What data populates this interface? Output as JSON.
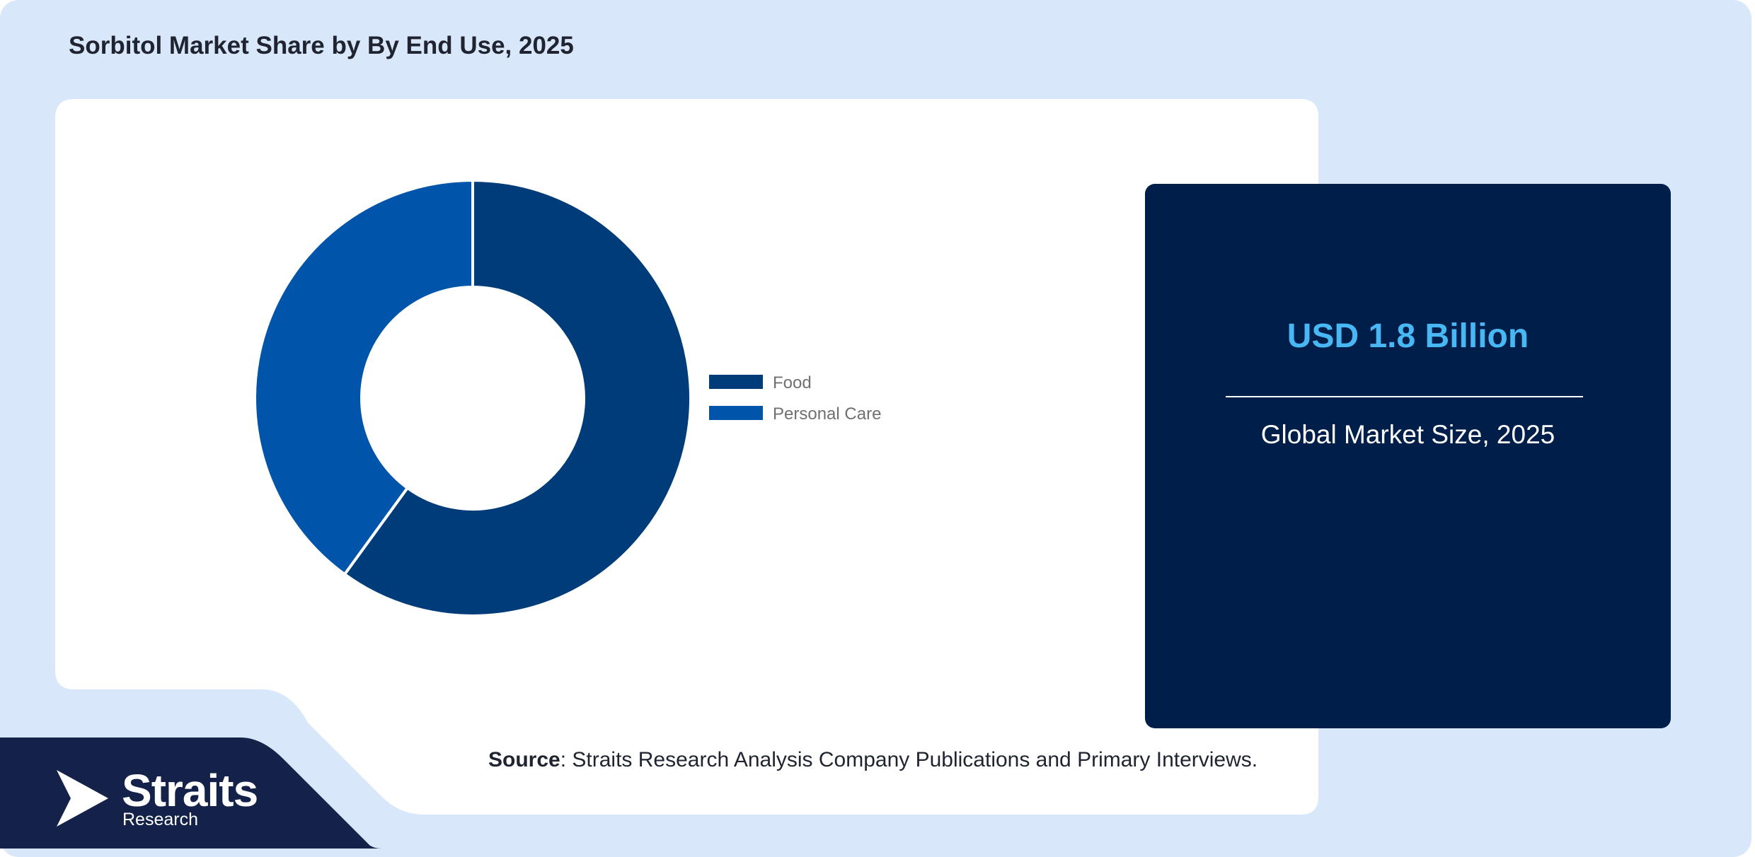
{
  "title": "Sorbitol Market Share by By End Use, 2025",
  "chart_data": {
    "type": "pie",
    "donut": true,
    "categories": [
      "Food",
      "Personal Care"
    ],
    "values": [
      60,
      40
    ],
    "colors": [
      "#003b7a",
      "#0055aa"
    ],
    "legend_position": "right"
  },
  "stat": {
    "value": "USD 1.8 Billion",
    "label": "Global Market Size, 2025"
  },
  "source": {
    "bold": "Source",
    "text": ": Straits Research Analysis Company Publications and Primary Interviews."
  },
  "logo": {
    "name": "Straits",
    "sub": "Research"
  },
  "colors": {
    "background": "#d9e7fa",
    "card": "#001e4a",
    "accent": "#48b8f5",
    "footer": "#14224a"
  }
}
